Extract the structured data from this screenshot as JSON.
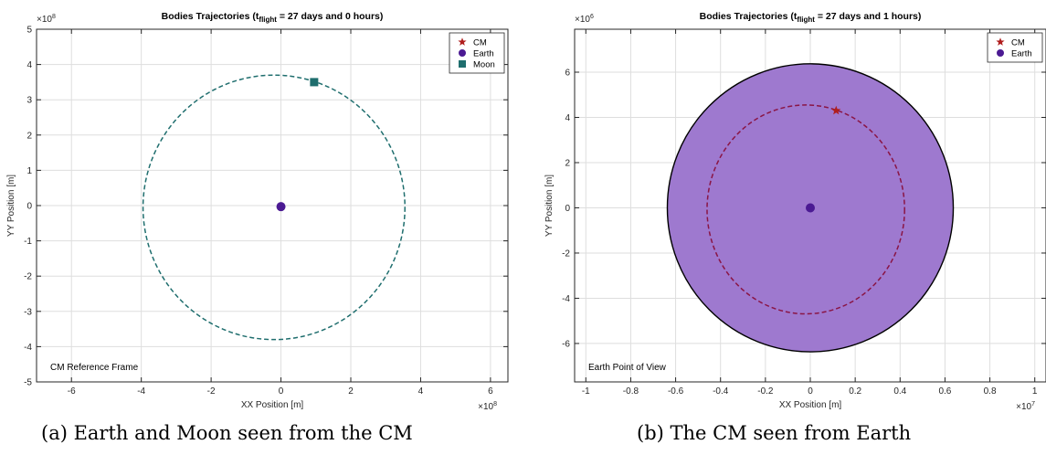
{
  "chart_data": [
    {
      "type": "line",
      "title_prefix": "Bodies Trajectories (t",
      "title_sub": "flight",
      "title_suffix": " = 27 days and 0 hours)",
      "xlabel": "XX Position [m]",
      "ylabel": "YY Position [m]",
      "x_exponent_label": "×10",
      "x_exponent": "8",
      "y_exponent_label": "×10",
      "y_exponent": "8",
      "xlim": [
        -7,
        6.5
      ],
      "ylim": [
        -5,
        5
      ],
      "xticks": [
        -6,
        -4,
        -2,
        0,
        2,
        4,
        6
      ],
      "xtick_labels": [
        "-6",
        "-4",
        "-2",
        "0",
        "2",
        "4",
        "6"
      ],
      "yticks": [
        -5,
        -4,
        -3,
        -2,
        -1,
        0,
        1,
        2,
        3,
        4,
        5
      ],
      "ytick_labels": [
        "-5",
        "-4",
        "-3",
        "-2",
        "-1",
        "0",
        "1",
        "2",
        "3",
        "4",
        "5"
      ],
      "grid": true,
      "legend_position": "top-right",
      "legend": [
        {
          "label": "CM",
          "marker": "star",
          "color": "#b01e1e"
        },
        {
          "label": "Earth",
          "marker": "circle",
          "color": "#4b1a93"
        },
        {
          "label": "Moon",
          "marker": "square",
          "color": "#1f6e6e"
        }
      ],
      "annotation": "CM Reference Frame",
      "moon_orbit": {
        "center": [
          -0.2,
          -0.05
        ],
        "rx": 3.75,
        "ry": 3.75,
        "color": "#1f6e6e",
        "style": "dashed"
      },
      "points": [
        {
          "name": "Earth",
          "x": 0.0,
          "y": -0.03,
          "marker": "circle",
          "color": "#4b1a93"
        },
        {
          "name": "Moon",
          "x": 0.95,
          "y": 3.5,
          "marker": "square",
          "color": "#1f6e6e"
        }
      ]
    },
    {
      "type": "line",
      "title_prefix": "Bodies Trajectories (t",
      "title_sub": "flight",
      "title_suffix": " = 27 days and 1 hours)",
      "xlabel": "XX Position [m]",
      "ylabel": "YY Position [m]",
      "x_exponent_label": "×10",
      "x_exponent": "7",
      "y_exponent_label": "×10",
      "y_exponent": "6",
      "xlim": [
        -1.05,
        1.05
      ],
      "ylim": [
        -7.7,
        7.9
      ],
      "xticks": [
        -1,
        -0.8,
        -0.6,
        -0.4,
        -0.2,
        0,
        0.2,
        0.4,
        0.6,
        0.8,
        1
      ],
      "xtick_labels": [
        "-1",
        "-0.8",
        "-0.6",
        "-0.4",
        "-0.2",
        "0",
        "0.2",
        "0.4",
        "0.6",
        "0.8",
        "1"
      ],
      "yticks": [
        -6,
        -4,
        -2,
        0,
        2,
        4,
        6
      ],
      "ytick_labels": [
        "-6",
        "-4",
        "-2",
        "0",
        "2",
        "4",
        "6"
      ],
      "grid": true,
      "legend_position": "top-right",
      "legend": [
        {
          "label": "CM",
          "marker": "star",
          "color": "#b01e1e"
        },
        {
          "label": "Earth",
          "marker": "circle",
          "color": "#4b1a93"
        }
      ],
      "annotation": "Earth Point of View",
      "earth_disk": {
        "center": [
          0,
          0
        ],
        "rx": 0.637,
        "ry": 6.37,
        "fill": "#9e79cf",
        "edge": "#000000"
      },
      "cm_orbit": {
        "center": [
          -0.02,
          -0.07
        ],
        "rx": 0.44,
        "ry": 4.62,
        "color": "#8a1545",
        "style": "dashed"
      },
      "points": [
        {
          "name": "Earth",
          "x": 0.0,
          "y": 0.0,
          "marker": "circle",
          "color": "#4b1a93"
        },
        {
          "name": "CM",
          "x": 0.115,
          "y": 4.3,
          "marker": "star",
          "color": "#b01e1e"
        }
      ]
    }
  ],
  "captions": {
    "a": "(a) Earth and Moon seen from the CM",
    "b": "(b) The CM seen from Earth"
  }
}
